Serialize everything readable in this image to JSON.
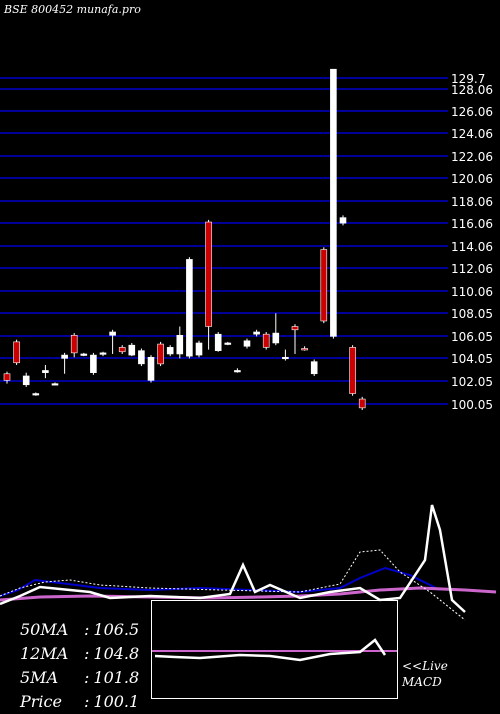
{
  "header": {
    "title": "BSE 800452 munafa.pro"
  },
  "colors": {
    "background": "#000000",
    "grid": "#0000cc",
    "up": "#ffffff",
    "down": "#cc0000",
    "ma_blue": "#0000aa",
    "ma_pink": "#cc66cc",
    "text": "#ffffff"
  },
  "chart_data": {
    "type": "candlestick",
    "ylim": [
      99.2,
      130.5
    ],
    "y_ticks": [
      "129.7",
      "128.06",
      "126.06",
      "124.06",
      "122.06",
      "120.06",
      "118.06",
      "116.06",
      "114.06",
      "112.06",
      "110.06",
      "108.05",
      "106.05",
      "104.05",
      "102.05",
      "100.05"
    ],
    "candles": [
      {
        "o": 102.2,
        "c": 102.8,
        "h": 103.0,
        "l": 101.9,
        "up": false
      },
      {
        "o": 103.8,
        "c": 105.7,
        "h": 105.9,
        "l": 103.6,
        "up": false
      },
      {
        "o": 101.8,
        "c": 102.6,
        "h": 102.9,
        "l": 101.6,
        "up": true
      },
      {
        "o": 101.0,
        "c": 100.9,
        "h": 101.1,
        "l": 100.8,
        "up": true
      },
      {
        "o": 102.9,
        "c": 103.1,
        "h": 103.6,
        "l": 102.4,
        "up": true
      },
      {
        "o": 101.9,
        "c": 101.8,
        "h": 102.0,
        "l": 101.8,
        "up": true
      },
      {
        "o": 104.2,
        "c": 104.5,
        "h": 104.7,
        "l": 102.8,
        "up": true
      },
      {
        "o": 106.3,
        "c": 104.7,
        "h": 106.5,
        "l": 104.3,
        "up": false
      },
      {
        "o": 104.6,
        "c": 104.5,
        "h": 104.7,
        "l": 104.4,
        "up": true
      },
      {
        "o": 102.9,
        "c": 104.5,
        "h": 104.7,
        "l": 102.7,
        "up": true
      },
      {
        "o": 104.6,
        "c": 104.7,
        "h": 104.8,
        "l": 104.4,
        "up": true
      },
      {
        "o": 106.3,
        "c": 106.6,
        "h": 106.8,
        "l": 104.6,
        "up": true
      },
      {
        "o": 105.2,
        "c": 104.8,
        "h": 105.4,
        "l": 104.6,
        "up": false
      },
      {
        "o": 104.5,
        "c": 105.4,
        "h": 105.6,
        "l": 104.4,
        "up": true
      },
      {
        "o": 103.7,
        "c": 104.9,
        "h": 105.1,
        "l": 103.5,
        "up": true
      },
      {
        "o": 102.2,
        "c": 104.3,
        "h": 104.5,
        "l": 102.0,
        "up": true
      },
      {
        "o": 105.5,
        "c": 103.7,
        "h": 105.7,
        "l": 103.5,
        "up": false
      },
      {
        "o": 104.6,
        "c": 105.2,
        "h": 105.4,
        "l": 104.4,
        "up": true
      },
      {
        "o": 104.6,
        "c": 106.3,
        "h": 107.1,
        "l": 104.2,
        "up": true
      },
      {
        "o": 104.4,
        "c": 113.2,
        "h": 113.4,
        "l": 104.2,
        "up": true
      },
      {
        "o": 104.5,
        "c": 105.6,
        "h": 105.8,
        "l": 104.3,
        "up": true
      },
      {
        "o": 116.6,
        "c": 107.1,
        "h": 116.8,
        "l": 105.0,
        "up": false
      },
      {
        "o": 104.9,
        "c": 106.4,
        "h": 106.6,
        "l": 104.8,
        "up": true
      },
      {
        "o": 105.6,
        "c": 105.5,
        "h": 105.7,
        "l": 105.4,
        "up": true
      },
      {
        "o": 103.0,
        "c": 103.1,
        "h": 103.3,
        "l": 102.9,
        "up": true
      },
      {
        "o": 105.3,
        "c": 105.8,
        "h": 106.0,
        "l": 105.1,
        "up": true
      },
      {
        "o": 106.4,
        "c": 106.6,
        "h": 106.8,
        "l": 106.2,
        "up": true
      },
      {
        "o": 106.4,
        "c": 105.2,
        "h": 106.6,
        "l": 105.0,
        "up": false
      },
      {
        "o": 105.6,
        "c": 106.5,
        "h": 108.3,
        "l": 105.4,
        "up": true
      },
      {
        "o": 104.2,
        "c": 104.3,
        "h": 105.0,
        "l": 104.0,
        "up": true
      },
      {
        "o": 107.1,
        "c": 106.8,
        "h": 107.3,
        "l": 104.6,
        "up": false
      },
      {
        "o": 105.1,
        "c": 105.0,
        "h": 105.3,
        "l": 104.9,
        "up": false
      },
      {
        "o": 103.9,
        "c": 102.8,
        "h": 104.1,
        "l": 102.6,
        "up": true
      },
      {
        "o": 114.1,
        "c": 107.6,
        "h": 114.3,
        "l": 107.4,
        "up": false
      },
      {
        "o": 106.2,
        "c": 130.5,
        "h": 130.5,
        "l": 106.0,
        "up": true
      },
      {
        "o": 116.5,
        "c": 117.0,
        "h": 117.2,
        "l": 116.3,
        "up": true
      },
      {
        "o": 105.2,
        "c": 101.0,
        "h": 105.4,
        "l": 100.8,
        "up": false
      },
      {
        "o": 100.5,
        "c": 99.7,
        "h": 100.7,
        "l": 99.5,
        "up": false
      }
    ],
    "moving_averages": {
      "ma50": "106.5",
      "ma12": "104.8",
      "ma5": "101.8",
      "price": "100.1"
    },
    "macd_label": "<<Live",
    "macd_title": "MACD"
  },
  "ma_labels": [
    {
      "label": "50MA",
      "value": "106.5"
    },
    {
      "label": "12MA",
      "value": "104.8"
    },
    {
      "label": "5MA",
      "value": "101.8"
    },
    {
      "label": "Price",
      "value": "100.1"
    }
  ]
}
